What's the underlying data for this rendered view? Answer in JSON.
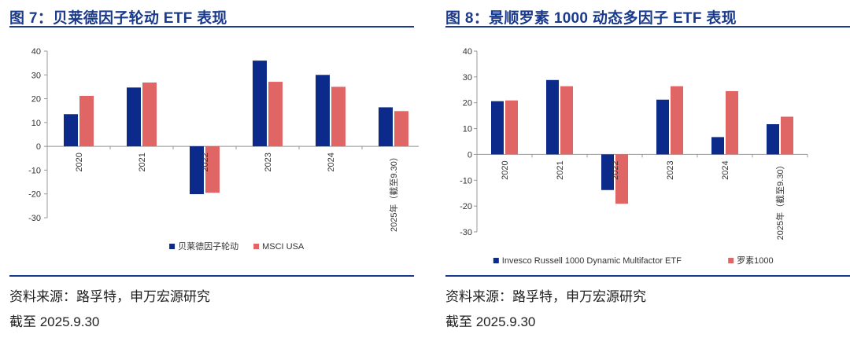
{
  "left": {
    "title": "图 7：贝莱德因子轮动 ETF 表现",
    "source": "资料来源：路孚特，申万宏源研究",
    "date_note": "截至 2025.9.30"
  },
  "right": {
    "title": "图 8：景顺罗素 1000 动态多因子 ETF 表现",
    "source": "资料来源：路孚特，申万宏源研究",
    "date_note": "截至 2025.9.30"
  },
  "colors": {
    "series1": "#0b2a8a",
    "series2": "#e06666",
    "title": "#1a3a8c"
  },
  "chart_data": [
    {
      "type": "bar",
      "categories": [
        "2020",
        "2021",
        "2022",
        "2023",
        "2024",
        "2025年（截至9.30）"
      ],
      "series": [
        {
          "name": "贝莱德因子轮动",
          "values": [
            13.5,
            24.7,
            -20.1,
            36.0,
            30.0,
            16.4
          ]
        },
        {
          "name": "MSCI USA",
          "values": [
            21.2,
            26.8,
            -19.5,
            27.1,
            25.0,
            14.8
          ]
        }
      ],
      "yticks": [
        40,
        30,
        20,
        10,
        0,
        -10,
        -20,
        -30
      ],
      "ylim": [
        -30,
        40
      ],
      "legend_position": "bottom-center"
    },
    {
      "type": "bar",
      "categories": [
        "2020",
        "2021",
        "2022",
        "2023",
        "2024",
        "2025年（截至9.30）"
      ],
      "series": [
        {
          "name": "Invesco Russell 1000 Dynamic Multifactor ETF",
          "values": [
            20.6,
            28.8,
            -13.8,
            21.2,
            6.7,
            11.7
          ]
        },
        {
          "name": "罗素1000",
          "values": [
            20.9,
            26.4,
            -19.1,
            26.4,
            24.5,
            14.6
          ]
        }
      ],
      "yticks": [
        40,
        30,
        20,
        10,
        0,
        -10,
        -20,
        -30
      ],
      "ylim": [
        -30,
        40
      ],
      "legend_position": "bottom-center"
    }
  ]
}
